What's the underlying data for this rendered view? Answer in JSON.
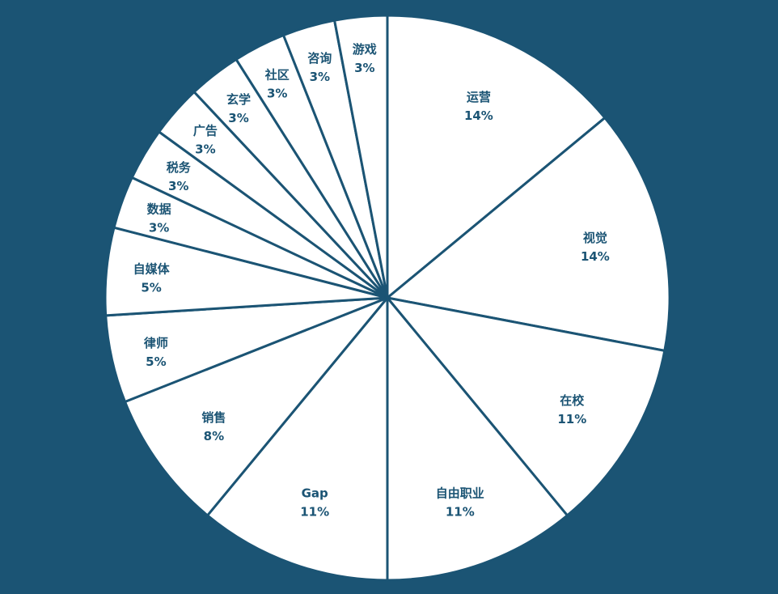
{
  "colors": {
    "background": "#1b5474",
    "slice_fill": "#ffffff",
    "label": "#1b5474"
  },
  "chart_data": {
    "type": "pie",
    "title": "",
    "start_angle_deg": 0,
    "direction": "clockwise",
    "slices": [
      {
        "label": "运营",
        "value": 14,
        "display": "14%"
      },
      {
        "label": "视觉",
        "value": 14,
        "display": "14%"
      },
      {
        "label": "在校",
        "value": 11,
        "display": "11%"
      },
      {
        "label": "自由职业",
        "value": 11,
        "display": "11%"
      },
      {
        "label": "Gap",
        "value": 11,
        "display": "11%"
      },
      {
        "label": "销售",
        "value": 8,
        "display": "8%"
      },
      {
        "label": "律师",
        "value": 5,
        "display": "5%"
      },
      {
        "label": "自媒体",
        "value": 5,
        "display": "5%"
      },
      {
        "label": "数据",
        "value": 3,
        "display": "3%"
      },
      {
        "label": "税务",
        "value": 3,
        "display": "3%"
      },
      {
        "label": "广告",
        "value": 3,
        "display": "3%"
      },
      {
        "label": "玄学",
        "value": 3,
        "display": "3%"
      },
      {
        "label": "社区",
        "value": 3,
        "display": "3%"
      },
      {
        "label": "咨询",
        "value": 3,
        "display": "3%"
      },
      {
        "label": "游戏",
        "value": 3,
        "display": "3%"
      }
    ]
  }
}
